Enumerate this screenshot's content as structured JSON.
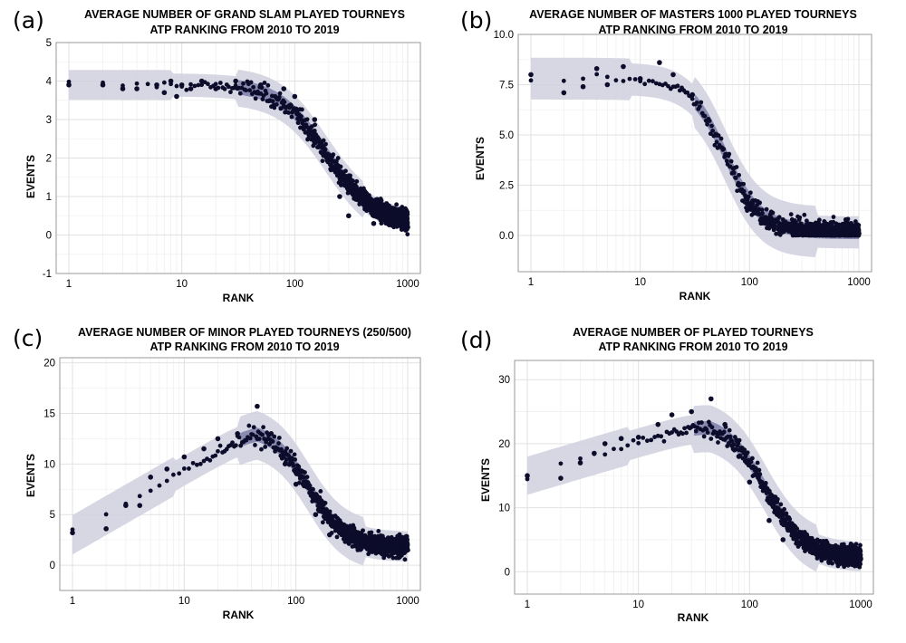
{
  "chart_data": [
    {
      "id": "a",
      "panel_label": "(a)",
      "type": "scatter",
      "title": "AVERAGE NUMBER OF GRAND SLAM PLAYED TOURNEYS",
      "subtitle": "ATP RANKING FROM 2010 TO 2019",
      "xlabel": "RANK",
      "ylabel": "EVENTS",
      "x_scale": "log10",
      "xlim": [
        1,
        1000
      ],
      "ylim": [
        -1,
        5
      ],
      "x_ticks": [
        1,
        10,
        100,
        1000
      ],
      "x_tick_labels": [
        "1",
        "10",
        "100",
        "1000"
      ],
      "y_ticks": [
        -1,
        0,
        1,
        2,
        3,
        4,
        5
      ],
      "y_tick_labels": [
        "-1",
        "0",
        "1",
        "2",
        "3",
        "4",
        "5"
      ],
      "curve": {
        "peak": 3.9,
        "start": 3.9,
        "peak_rank": 1,
        "decline_mid": 190,
        "decline_width": 0.38,
        "tail": 0.3,
        "noise": 0.35,
        "band": 0.3
      },
      "points_shown": [
        [
          1,
          3.9
        ],
        [
          2,
          3.9
        ],
        [
          3,
          3.8
        ],
        [
          4,
          3.8
        ],
        [
          6,
          3.9
        ],
        [
          7,
          3.7
        ],
        [
          8,
          4.0
        ],
        [
          9,
          3.6
        ],
        [
          10,
          3.9
        ],
        [
          12,
          3.8
        ],
        [
          15,
          4.0
        ],
        [
          20,
          3.8
        ],
        [
          30,
          4.0
        ],
        [
          50,
          3.9
        ],
        [
          80,
          3.8
        ],
        [
          100,
          3.6
        ],
        [
          150,
          3.0
        ],
        [
          200,
          2.0
        ],
        [
          250,
          1.0
        ],
        [
          300,
          0.5
        ],
        [
          500,
          0.3
        ],
        [
          1000,
          0.2
        ]
      ]
    },
    {
      "id": "b",
      "panel_label": "(b)",
      "type": "scatter",
      "title": "AVERAGE NUMBER OF MASTERS 1000 PLAYED TOURNEYS",
      "subtitle": "ATP RANKING FROM 2010 TO 2019",
      "xlabel": "RANK",
      "ylabel": "EVENTS",
      "x_scale": "log10",
      "xlim": [
        1,
        1000
      ],
      "ylim": [
        -1.8,
        10
      ],
      "x_ticks": [
        1,
        10,
        100,
        1000
      ],
      "x_tick_labels": [
        "1",
        "10",
        "100",
        "1000"
      ],
      "y_ticks": [
        0,
        2.5,
        5,
        7.5,
        10
      ],
      "y_tick_labels": [
        "0.0",
        "2.5",
        "5.0",
        "7.5",
        "10.0"
      ],
      "curve": {
        "peak": 7.8,
        "start": 7.8,
        "peak_rank": 1,
        "decline_mid": 60,
        "decline_width": 0.3,
        "tail": 0.15,
        "noise": 0.7,
        "band": 0.8
      },
      "points_shown": [
        [
          1,
          8.0
        ],
        [
          2,
          7.1
        ],
        [
          3,
          7.4
        ],
        [
          4,
          8.3
        ],
        [
          5,
          7.5
        ],
        [
          7,
          8.4
        ],
        [
          10,
          7.8
        ],
        [
          15,
          8.6
        ],
        [
          20,
          8.0
        ],
        [
          30,
          7.0
        ],
        [
          50,
          5.0
        ],
        [
          80,
          2.5
        ],
        [
          100,
          1.5
        ],
        [
          150,
          0.7
        ],
        [
          200,
          0.4
        ],
        [
          500,
          0.2
        ],
        [
          1000,
          0.1
        ]
      ]
    },
    {
      "id": "c",
      "panel_label": "(c)",
      "type": "scatter",
      "title": "AVERAGE NUMBER OF MINOR PLAYED TOURNEYS (250/500)",
      "subtitle": "ATP RANKING FROM 2010 TO 2019",
      "xlabel": "RANK",
      "ylabel": "EVENTS",
      "x_scale": "log10",
      "xlim": [
        1,
        1000
      ],
      "ylim": [
        -2.5,
        20.5
      ],
      "x_ticks": [
        1,
        10,
        100,
        1000
      ],
      "x_tick_labels": [
        "1",
        "10",
        "100",
        "1000"
      ],
      "y_ticks": [
        0,
        5,
        10,
        15,
        20
      ],
      "y_tick_labels": [
        "0",
        "5",
        "10",
        "15",
        "20"
      ],
      "curve": {
        "peak": 13.5,
        "start": 3.0,
        "peak_rank": 45,
        "decline_mid": 130,
        "decline_width": 0.3,
        "tail": 1.8,
        "noise": 1.3,
        "band": 1.5
      },
      "points_shown": [
        [
          1,
          3.2
        ],
        [
          2,
          3.6
        ],
        [
          3,
          5.9
        ],
        [
          4,
          5.9
        ],
        [
          5,
          8.7
        ],
        [
          7,
          9.5
        ],
        [
          10,
          10.7
        ],
        [
          15,
          11.5
        ],
        [
          20,
          12.5
        ],
        [
          30,
          13.0
        ],
        [
          45,
          15.7
        ],
        [
          60,
          13.0
        ],
        [
          80,
          10.0
        ],
        [
          100,
          8.0
        ],
        [
          150,
          5.0
        ],
        [
          200,
          3.0
        ],
        [
          500,
          2.0
        ],
        [
          1000,
          1.5
        ]
      ]
    },
    {
      "id": "d",
      "panel_label": "(d)",
      "type": "scatter",
      "title": "AVERAGE NUMBER OF PLAYED TOURNEYS",
      "subtitle": "ATP RANKING FROM 2010 TO 2019",
      "xlabel": "RANK",
      "ylabel": "EVENTS",
      "x_scale": "log10",
      "xlim": [
        1,
        1000
      ],
      "ylim": [
        -3.5,
        33
      ],
      "x_ticks": [
        1,
        10,
        100,
        1000
      ],
      "x_tick_labels": [
        "1",
        "10",
        "100",
        "1000"
      ],
      "y_ticks": [
        0,
        10,
        20,
        30
      ],
      "y_tick_labels": [
        "0",
        "10",
        "20",
        "30"
      ],
      "curve": {
        "peak": 23.5,
        "start": 15.0,
        "peak_rank": 45,
        "decline_mid": 140,
        "decline_width": 0.32,
        "tail": 2.2,
        "noise": 2.0,
        "band": 2.3
      },
      "points_shown": [
        [
          1,
          15.0
        ],
        [
          2,
          14.6
        ],
        [
          3,
          17.0
        ],
        [
          4,
          18.5
        ],
        [
          5,
          20.0
        ],
        [
          7,
          20.8
        ],
        [
          10,
          21.0
        ],
        [
          15,
          23.0
        ],
        [
          20,
          24.5
        ],
        [
          30,
          25.0
        ],
        [
          45,
          27.0
        ],
        [
          60,
          23.0
        ],
        [
          80,
          18.0
        ],
        [
          100,
          14.0
        ],
        [
          150,
          8.0
        ],
        [
          200,
          5.0
        ],
        [
          500,
          3.0
        ],
        [
          1000,
          2.0
        ]
      ]
    }
  ]
}
